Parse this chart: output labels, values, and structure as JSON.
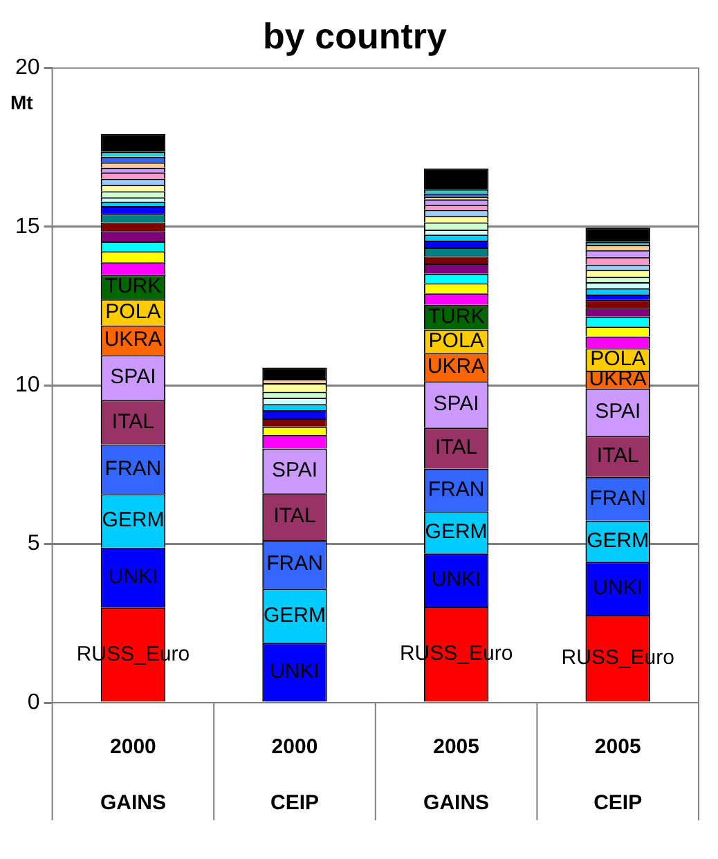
{
  "chart_data": {
    "type": "bar",
    "title": "by country",
    "ylabel": "Mt",
    "stacked": true,
    "grid": "y",
    "legend": false,
    "categories": [
      "2000 GAINS",
      "2000 CEIP",
      "2005 GAINS",
      "2005 CEIP"
    ],
    "ylim": [
      0,
      20
    ],
    "yticks": [
      0,
      5,
      10,
      15,
      20
    ],
    "series": [
      {
        "name": "RUSS_Euro",
        "color": "#ff0000",
        "values": [
          3.0,
          0,
          3.03,
          2.77
        ]
      },
      {
        "name": "UNKI",
        "color": "#0000ff",
        "values": [
          1.89,
          1.89,
          1.67,
          1.67
        ]
      },
      {
        "name": "GERM",
        "color": "#00ccff",
        "values": [
          1.68,
          1.7,
          1.33,
          1.3
        ]
      },
      {
        "name": "FRAN",
        "color": "#3366ff",
        "values": [
          1.57,
          1.53,
          1.34,
          1.37
        ]
      },
      {
        "name": "ITAL",
        "color": "#993366",
        "values": [
          1.4,
          1.48,
          1.3,
          1.3
        ]
      },
      {
        "name": "SPAI",
        "color": "#cc99ff",
        "values": [
          1.41,
          1.41,
          1.46,
          1.49
        ]
      },
      {
        "name": "UKRA",
        "color": "#ff6600",
        "values": [
          0.94,
          0,
          0.89,
          0.56
        ]
      },
      {
        "name": "POLA",
        "color": "#ffcc00",
        "values": [
          0.82,
          0,
          0.74,
          0.71
        ]
      },
      {
        "name": "TURK",
        "color": "#006600",
        "values": [
          0.77,
          0,
          0.78,
          0
        ]
      },
      {
        "color": "#ff00ff",
        "values": [
          0.4,
          0.43,
          0.36,
          0.37
        ]
      },
      {
        "color": "#ffff00",
        "values": [
          0.35,
          0.26,
          0.32,
          0.31
        ]
      },
      {
        "color": "#00ffff",
        "values": [
          0.31,
          0,
          0.3,
          0.32
        ]
      },
      {
        "color": "#800080",
        "values": [
          0.32,
          0,
          0.32,
          0.26
        ]
      },
      {
        "color": "#800000",
        "values": [
          0.28,
          0.26,
          0.23,
          0.27
        ]
      },
      {
        "color": "#008080",
        "values": [
          0.26,
          0,
          0.27,
          0
        ]
      },
      {
        "color": "#0000ff",
        "values": [
          0.25,
          0.26,
          0.22,
          0.16
        ]
      },
      {
        "color": "#00ccff",
        "values": [
          0.14,
          0.19,
          0.19,
          0.2
        ]
      },
      {
        "color": "#ccffff",
        "values": [
          0.14,
          0.2,
          0.16,
          0.19
        ]
      },
      {
        "color": "#ccffcc",
        "values": [
          0.19,
          0.19,
          0.23,
          0.17
        ]
      },
      {
        "color": "#ffff99",
        "values": [
          0.2,
          0.27,
          0.2,
          0.22
        ]
      },
      {
        "color": "#99ccff",
        "values": [
          0.19,
          0,
          0.19,
          0.17
        ]
      },
      {
        "color": "#ff99cc",
        "values": [
          0.2,
          0,
          0.16,
          0.23
        ]
      },
      {
        "color": "#cc99ff",
        "values": [
          0.15,
          0,
          0.17,
          0.22
        ]
      },
      {
        "color": "#ffcc99",
        "values": [
          0.17,
          0.13,
          0.09,
          0.17
        ]
      },
      {
        "color": "#3366ff",
        "values": [
          0.17,
          0,
          0.1,
          0
        ]
      },
      {
        "color": "#33cccc",
        "values": [
          0.16,
          0,
          0.13,
          0.09
        ]
      },
      {
        "color": "#000000",
        "values": [
          0.56,
          0.36,
          0.66,
          0.45
        ]
      }
    ]
  }
}
